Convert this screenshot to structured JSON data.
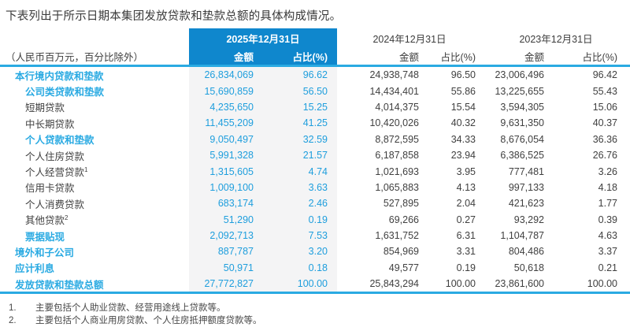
{
  "title": "下表列出于所示日期本集团发放贷款和垫款总额的具体构成情况。",
  "colors": {
    "header_block_bg": "#0f87cd",
    "accent_blue": "#2aaae2",
    "highlight_value_blue": "#1e9edd",
    "highlight_col_bg": "#f4f4f5",
    "text_dark": "#404040"
  },
  "table": {
    "unit_note": "（人民币百万元，百分比除外）",
    "periods": [
      {
        "date": "2025年12月31日",
        "amount_label": "金额",
        "pct_label": "占比(%)"
      },
      {
        "date": "2024年12月31日",
        "amount_label": "金额",
        "pct_label": "占比(%)"
      },
      {
        "date": "2023年12月31日",
        "amount_label": "金额",
        "pct_label": "占比(%)"
      }
    ],
    "rows": [
      {
        "label": "本行境内贷款和垫款",
        "sup": "",
        "indent": 0,
        "bold": true,
        "values": [
          "26,834,069",
          "96.62",
          "24,938,748",
          "96.50",
          "23,006,496",
          "96.42"
        ]
      },
      {
        "label": "公司类贷款和垫款",
        "sup": "",
        "indent": 1,
        "bold": true,
        "values": [
          "15,690,859",
          "56.50",
          "14,434,401",
          "55.86",
          "13,225,655",
          "55.43"
        ]
      },
      {
        "label": "短期贷款",
        "sup": "",
        "indent": 1,
        "bold": false,
        "values": [
          "4,235,650",
          "15.25",
          "4,014,375",
          "15.54",
          "3,594,305",
          "15.06"
        ]
      },
      {
        "label": "中长期贷款",
        "sup": "",
        "indent": 1,
        "bold": false,
        "values": [
          "11,455,209",
          "41.25",
          "10,420,026",
          "40.32",
          "9,631,350",
          "40.37"
        ]
      },
      {
        "label": "个人贷款和垫款",
        "sup": "",
        "indent": 1,
        "bold": true,
        "values": [
          "9,050,497",
          "32.59",
          "8,872,595",
          "34.33",
          "8,676,054",
          "36.36"
        ]
      },
      {
        "label": "个人住房贷款",
        "sup": "",
        "indent": 1,
        "bold": false,
        "values": [
          "5,991,328",
          "21.57",
          "6,187,858",
          "23.94",
          "6,386,525",
          "26.76"
        ]
      },
      {
        "label": "个人经营贷款",
        "sup": "1",
        "indent": 1,
        "bold": false,
        "values": [
          "1,315,605",
          "4.74",
          "1,021,693",
          "3.95",
          "777,481",
          "3.26"
        ]
      },
      {
        "label": "信用卡贷款",
        "sup": "",
        "indent": 1,
        "bold": false,
        "values": [
          "1,009,100",
          "3.63",
          "1,065,883",
          "4.13",
          "997,133",
          "4.18"
        ]
      },
      {
        "label": "个人消费贷款",
        "sup": "",
        "indent": 1,
        "bold": false,
        "values": [
          "683,174",
          "2.46",
          "527,895",
          "2.04",
          "421,623",
          "1.77"
        ]
      },
      {
        "label": "其他贷款",
        "sup": "2",
        "indent": 1,
        "bold": false,
        "values": [
          "51,290",
          "0.19",
          "69,266",
          "0.27",
          "93,292",
          "0.39"
        ]
      },
      {
        "label": "票据贴现",
        "sup": "",
        "indent": 1,
        "bold": true,
        "values": [
          "2,092,713",
          "7.53",
          "1,631,752",
          "6.31",
          "1,104,787",
          "4.63"
        ]
      },
      {
        "label": "境外和子公司",
        "sup": "",
        "indent": 0,
        "bold": true,
        "values": [
          "887,787",
          "3.20",
          "854,969",
          "3.31",
          "804,486",
          "3.37"
        ]
      },
      {
        "label": "应计利息",
        "sup": "",
        "indent": 0,
        "bold": true,
        "values": [
          "50,971",
          "0.18",
          "49,577",
          "0.19",
          "50,618",
          "0.21"
        ]
      },
      {
        "label": "发放贷款和垫款总额",
        "sup": "",
        "indent": 0,
        "bold": true,
        "values": [
          "27,772,827",
          "100.00",
          "25,843,294",
          "100.00",
          "23,861,600",
          "100.00"
        ]
      }
    ]
  },
  "footnotes": [
    {
      "n": "1.",
      "text": "主要包括个人助业贷款、经营用途线上贷款等。"
    },
    {
      "n": "2.",
      "text": "主要包括个人商业用房贷款、个人住房抵押额度贷款等。"
    }
  ]
}
